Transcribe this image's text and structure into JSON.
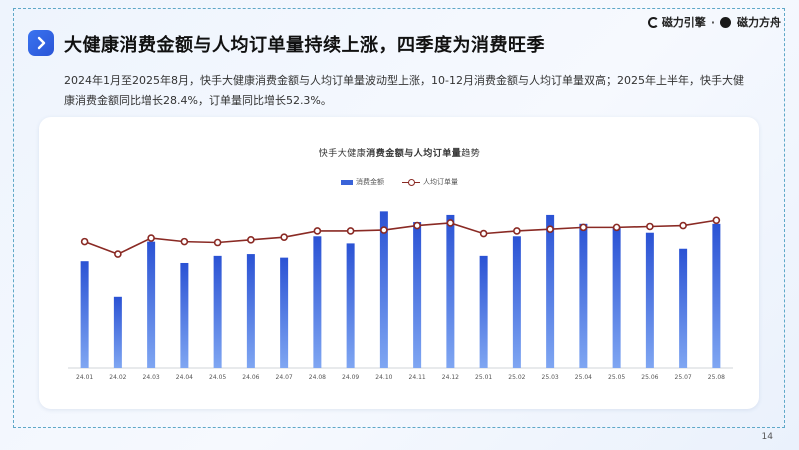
{
  "header": {
    "title": "大健康消费金额与人均订单量持续上涨，四季度为消费旺季",
    "summary": "2024年1月至2025年8月，快手大健康消费金额与人均订单量波动型上涨，10-12月消费金额与人均订单量双高；2025年上半年，快手大健康消费金额同比增长28.4%，订单量同比增长52.3%。"
  },
  "logos": {
    "left": "磁力引擎",
    "separator": "·",
    "right": "磁力方舟"
  },
  "page_number": "14",
  "colors": {
    "bar": "#3a63d8",
    "line": "#8a2a24",
    "accent": "#2f62e6"
  },
  "chart_data": {
    "type": "bar+line",
    "title_prefix": "快手大健康",
    "title_bold": "消费金额与人均订单量",
    "title_suffix": "趋势",
    "legend": [
      "消费金额",
      "人均订单量"
    ],
    "categories": [
      "24.01",
      "24.02",
      "24.03",
      "24.04",
      "24.05",
      "24.06",
      "24.07",
      "24.08",
      "24.09",
      "24.10",
      "24.11",
      "24.12",
      "25.01",
      "25.02",
      "25.03",
      "25.04",
      "25.05",
      "25.06",
      "25.07",
      "25.08"
    ],
    "series": [
      {
        "name": "消费金额",
        "type": "bar",
        "values": [
          60,
          40,
          71,
          59,
          63,
          64,
          62,
          74,
          70,
          88,
          82,
          86,
          63,
          74,
          86,
          81,
          79,
          76,
          67,
          81
        ]
      },
      {
        "name": "人均订单量",
        "type": "line",
        "values": [
          71,
          64,
          73,
          71,
          70.5,
          72,
          73.5,
          77,
          77,
          77.5,
          80,
          81.5,
          75.5,
          77,
          78,
          79,
          79,
          79.5,
          80,
          83
        ]
      }
    ],
    "ylim": [
      0,
      100
    ],
    "grid": false,
    "legend_position": "top-center"
  }
}
